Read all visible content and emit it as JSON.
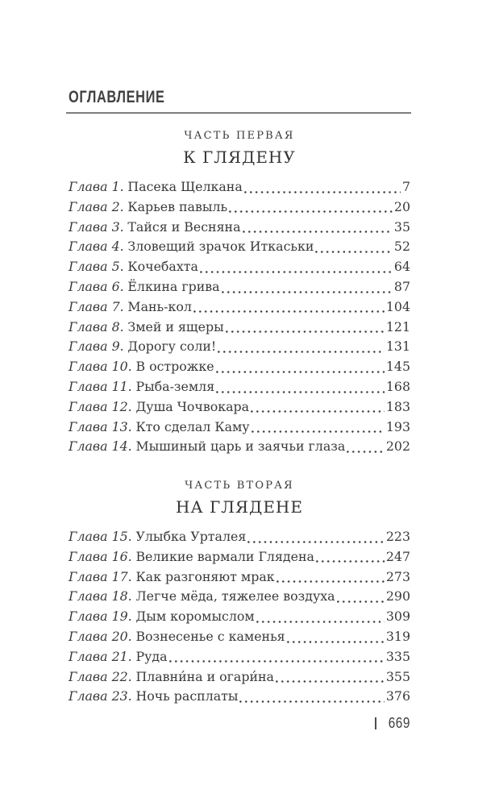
{
  "header": {
    "title": "ОГЛАВЛЕНИЕ"
  },
  "footer": {
    "page_number": "669"
  },
  "colors": {
    "text": "#3a3a3a",
    "rule": "#757575",
    "background": "#ffffff"
  },
  "toc": {
    "parts": [
      {
        "label": "ЧАСТЬ ПЕРВАЯ",
        "title": "К ГЛЯДЕНУ",
        "entries": [
          {
            "chapter": "Глава 1.",
            "title": "Пасека Щелкана",
            "page": "7"
          },
          {
            "chapter": "Глава 2.",
            "title": "Карьев павыль",
            "page": "20"
          },
          {
            "chapter": "Глава 3.",
            "title": "Тайся и Весняна",
            "page": "35"
          },
          {
            "chapter": "Глава 4.",
            "title": "Зловещий зрачок Иткаськи",
            "page": "52"
          },
          {
            "chapter": "Глава 5.",
            "title": "Кочебахта",
            "page": "64"
          },
          {
            "chapter": "Глава 6.",
            "title": "Ёлкина грива",
            "page": "87"
          },
          {
            "chapter": "Глава 7.",
            "title": "Мань-кол",
            "page": "104"
          },
          {
            "chapter": "Глава 8.",
            "title": "Змей и ящеры",
            "page": "121"
          },
          {
            "chapter": "Глава 9.",
            "title": "Дорогу соли!",
            "page": "131"
          },
          {
            "chapter": "Глава 10.",
            "title": "В острожке",
            "page": "145"
          },
          {
            "chapter": "Глава 11.",
            "title": "Рыба-земля",
            "page": "168"
          },
          {
            "chapter": "Глава 12.",
            "title": "Душа Чочвокара",
            "page": "183"
          },
          {
            "chapter": "Глава 13.",
            "title": "Кто сделал Каму",
            "page": "193"
          },
          {
            "chapter": "Глава 14.",
            "title": "Мышиный царь и заячьи глаза",
            "page": "202"
          }
        ]
      },
      {
        "label": "ЧАСТЬ ВТОРАЯ",
        "title": "НА ГЛЯДЕНЕ",
        "entries": [
          {
            "chapter": "Глава 15.",
            "title": "Улыбка Урталея",
            "page": "223"
          },
          {
            "chapter": "Глава 16.",
            "title": "Великие вармали Глядена",
            "page": "247"
          },
          {
            "chapter": "Глава 17.",
            "title": "Как разгоняют мрак",
            "page": "273"
          },
          {
            "chapter": "Глава 18.",
            "title": "Легче мёда, тяжелее воздуха",
            "page": "290"
          },
          {
            "chapter": "Глава 19.",
            "title": "Дым коромыслом",
            "page": "309"
          },
          {
            "chapter": "Глава 20.",
            "title": "Вознесенье с каменья",
            "page": "319"
          },
          {
            "chapter": "Глава 21.",
            "title": "Руда",
            "page": "335"
          },
          {
            "chapter": "Глава 22.",
            "title": "Плавни́на и огари́на",
            "page": "355"
          },
          {
            "chapter": "Глава 23.",
            "title": "Ночь расплаты",
            "page": "376"
          }
        ]
      }
    ]
  }
}
